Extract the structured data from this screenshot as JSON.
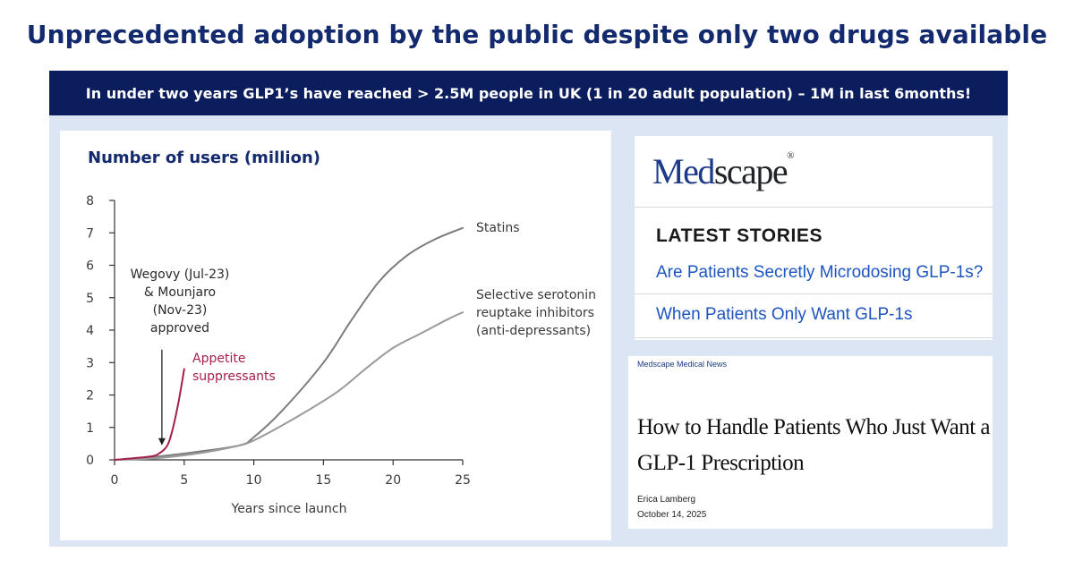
{
  "slide": {
    "title": "Unprecedented adoption by the public despite only two drugs available",
    "banner": "In under two years GLP1’s have reached > 2.5M people in UK (1 in 20 adult population) – 1M in last 6months!"
  },
  "chart_data": {
    "type": "line",
    "title": "Number of users (million)",
    "xlabel": "Years since launch",
    "ylabel": "",
    "xlim": [
      0,
      25
    ],
    "ylim": [
      0,
      8
    ],
    "xticks": [
      0,
      5,
      10,
      15,
      20,
      25
    ],
    "yticks": [
      0,
      1,
      2,
      3,
      4,
      5,
      6,
      7,
      8
    ],
    "grid": false,
    "series": [
      {
        "name": "Statins",
        "label_lines": [
          "Statins"
        ],
        "color": "#7c7c7c",
        "points": [
          [
            0,
            0
          ],
          [
            3,
            0.1
          ],
          [
            6,
            0.25
          ],
          [
            9,
            0.45
          ],
          [
            10,
            0.7
          ],
          [
            12,
            1.5
          ],
          [
            15,
            3.0
          ],
          [
            17,
            4.3
          ],
          [
            19,
            5.5
          ],
          [
            21,
            6.3
          ],
          [
            23,
            6.8
          ],
          [
            25,
            7.15
          ]
        ]
      },
      {
        "name": "Selective serotonin reuptake inhibitors (anti-depressants)",
        "label_lines": [
          "Selective serotonin",
          "reuptake inhibitors",
          "(anti-depressants)"
        ],
        "color": "#9a9a9a",
        "points": [
          [
            0,
            0
          ],
          [
            3,
            0.05
          ],
          [
            6,
            0.2
          ],
          [
            8.5,
            0.4
          ],
          [
            10,
            0.6
          ],
          [
            13,
            1.3
          ],
          [
            16,
            2.1
          ],
          [
            18,
            2.8
          ],
          [
            20,
            3.45
          ],
          [
            22,
            3.9
          ],
          [
            24,
            4.35
          ],
          [
            25,
            4.55
          ]
        ]
      },
      {
        "name": "Appetite suppressants",
        "label_lines": [
          "Appetite",
          "suppressants"
        ],
        "color": "#a61e4d",
        "points": [
          [
            0,
            0
          ],
          [
            2.5,
            0.1
          ],
          [
            3.2,
            0.2
          ],
          [
            3.8,
            0.45
          ],
          [
            4.2,
            1.0
          ],
          [
            4.6,
            1.8
          ],
          [
            5.0,
            2.8
          ]
        ]
      }
    ],
    "annotation": {
      "label_lines": [
        "Wegovy (Jul-23)",
        "& Mounjaro",
        "(Nov-23)",
        "approved"
      ],
      "arrow_x": 3.4,
      "arrow_from_y": 3.4,
      "arrow_to_y": 0.45
    }
  },
  "medscape": {
    "logo_med": "Med",
    "logo_scape": "scape",
    "logo_mark": "®",
    "latest_heading": "LATEST STORIES",
    "links": [
      "Are Patients Secretly Microdosing GLP-1s?",
      "When Patients Only Want GLP-1s"
    ]
  },
  "article": {
    "source": "Medscape Medical News",
    "headline": "How to Handle Patients Who Just Want a GLP-1 Prescription",
    "author": "Erica Lamberg",
    "date": "October 14, 2025"
  }
}
